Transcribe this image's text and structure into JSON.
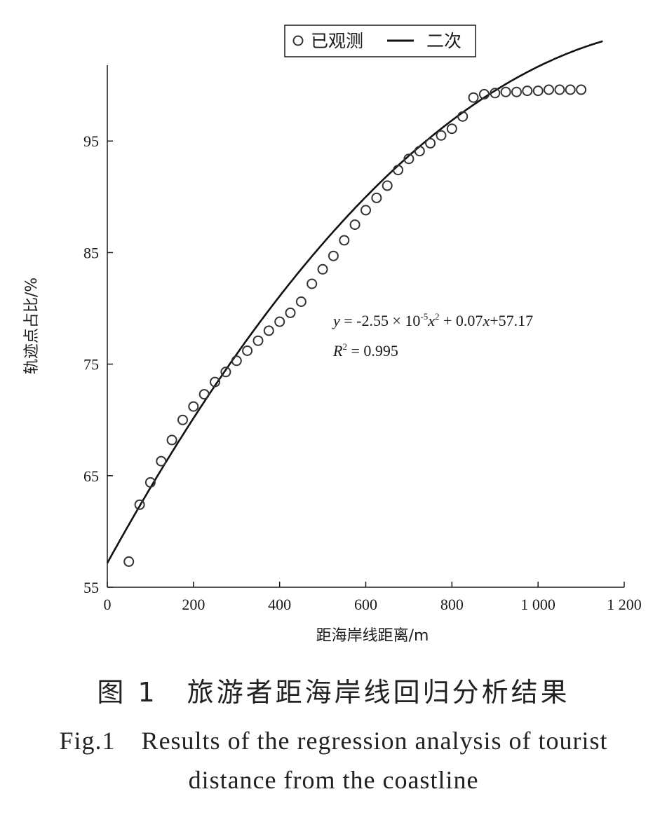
{
  "chart_data": {
    "type": "scatter",
    "xlabel": "距海岸线距离/m",
    "ylabel": "轨迹点占比/%",
    "xlim": [
      0,
      1200
    ],
    "ylim": [
      55,
      101.8
    ],
    "x_ticks": [
      0,
      200,
      400,
      600,
      800,
      1000,
      1200
    ],
    "x_tick_labels": [
      "0",
      "200",
      "400",
      "600",
      "800",
      "1 000",
      "1 200"
    ],
    "y_ticks": [
      55,
      65,
      75,
      85,
      95
    ],
    "y_tick_labels": [
      "55",
      "65",
      "75",
      "85",
      "95"
    ],
    "grid": false,
    "legend": {
      "placement": "top-center",
      "observed_label": "已观测",
      "fit_label": "二次"
    },
    "series": [
      {
        "name": "已观测",
        "kind": "markers",
        "marker": "open-circle",
        "x": [
          50,
          75,
          100,
          125,
          150,
          175,
          200,
          225,
          250,
          275,
          300,
          325,
          350,
          375,
          400,
          425,
          450,
          475,
          500,
          525,
          550,
          575,
          600,
          625,
          650,
          675,
          700,
          725,
          750,
          775,
          800,
          825,
          850,
          875,
          900,
          925,
          950,
          975,
          1000,
          1025,
          1050,
          1075,
          1100
        ],
        "y": [
          57.3,
          62.4,
          64.4,
          66.3,
          68.2,
          70.0,
          71.2,
          72.3,
          73.4,
          74.3,
          75.3,
          76.2,
          77.1,
          78.0,
          78.8,
          79.6,
          80.6,
          82.2,
          83.5,
          84.7,
          86.1,
          87.5,
          88.8,
          89.9,
          91.0,
          92.4,
          93.4,
          94.1,
          94.8,
          95.5,
          96.1,
          97.2,
          98.9,
          99.2,
          99.3,
          99.4,
          99.4,
          99.5,
          99.5,
          99.6,
          99.6,
          99.6,
          99.6
        ]
      },
      {
        "name": "二次",
        "kind": "fit-line",
        "coefficients": {
          "a": -2.55e-05,
          "b": 0.07,
          "c": 57.17
        },
        "x_range": [
          0,
          1150
        ]
      }
    ],
    "annotations": {
      "equation": {
        "y_var": "y",
        "eq_part1": " = -2.55 × 10",
        "exp1": "-5",
        "x_var1": "x",
        "exp2": "2",
        "eq_part2": " + 0.07",
        "x_var2": "x",
        "eq_part3": "+57.17"
      },
      "r2": {
        "r_var": "R",
        "exp": "2",
        "text": " = 0.995"
      }
    },
    "colors": {
      "ink": "#1a1a1a",
      "marker": "#333333",
      "line": "#111111"
    }
  },
  "caption": {
    "cn": "图 1　旅游者距海岸线回归分析结果",
    "en_line1": "Fig.1　Results of the regression analysis of tourist",
    "en_line2": "distance from the coastline"
  }
}
